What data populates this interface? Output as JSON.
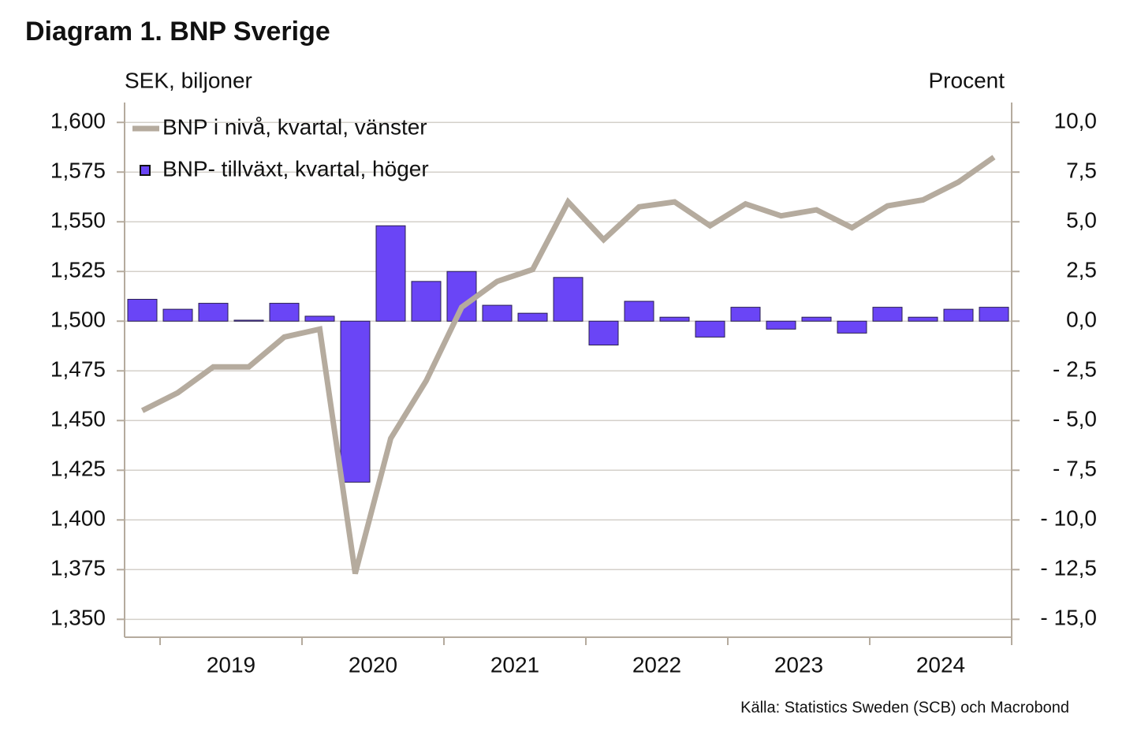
{
  "chart_data": {
    "type": "bar-line",
    "title": "Diagram 1. BNP Sverige",
    "y_axis_label": "SEK, biljoner",
    "y2_axis_label": "Procent",
    "source": "Källa: Statistics Sweden (SCB)  och Macrobond",
    "year_labels": [
      "2019",
      "2020",
      "2021",
      "2022",
      "2023",
      "2024"
    ],
    "ylim": [
      1341,
      1610
    ],
    "yticks": [
      {
        "value": 1350,
        "label": "1,350"
      },
      {
        "value": 1375,
        "label": "1,375"
      },
      {
        "value": 1400,
        "label": "1,400"
      },
      {
        "value": 1425,
        "label": "1,425"
      },
      {
        "value": 1450,
        "label": "1,450"
      },
      {
        "value": 1475,
        "label": "1,475"
      },
      {
        "value": 1500,
        "label": "1,500"
      },
      {
        "value": 1525,
        "label": "1,525"
      },
      {
        "value": 1550,
        "label": "1,550"
      },
      {
        "value": 1575,
        "label": "1,575"
      },
      {
        "value": 1600,
        "label": "1,600"
      }
    ],
    "y2lim": [
      -15.9,
      11.0
    ],
    "y2ticks": [
      {
        "value": -15,
        "label": "- 15,0"
      },
      {
        "value": -12.5,
        "label": "- 12,5"
      },
      {
        "value": -10,
        "label": "- 10,0"
      },
      {
        "value": -7.5,
        "label": "- 7,5"
      },
      {
        "value": -5,
        "label": "- 5,0"
      },
      {
        "value": -2.5,
        "label": "- 2,5"
      },
      {
        "value": 0,
        "label": "0,0"
      },
      {
        "value": 2.5,
        "label": "2,5"
      },
      {
        "value": 5,
        "label": "5,0"
      },
      {
        "value": 7.5,
        "label": "7,5"
      },
      {
        "value": 10,
        "label": "10,0"
      }
    ],
    "grid": true,
    "legend": "top-left",
    "series": [
      {
        "name": "BNP i nivå, kvartal, vänster",
        "type": "line",
        "color": "#b5ab9e",
        "values": [
          1455,
          1464,
          1477,
          1477,
          1492,
          1496,
          1373,
          1441,
          1470,
          1507,
          1520,
          1526,
          1560,
          1541,
          1557.5,
          1560,
          1548,
          1559,
          1553,
          1556,
          1547,
          1558,
          1561,
          1570,
          1582.5
        ]
      },
      {
        "name": "BNP- tillväxt, kvartal, höger",
        "type": "bar",
        "axis": "y2",
        "color": "#6a45f6",
        "values": [
          1.1,
          0.6,
          0.9,
          0.05,
          0.9,
          0.25,
          -8.1,
          4.8,
          2.0,
          2.5,
          0.8,
          0.4,
          2.2,
          -1.2,
          1.0,
          0.2,
          -0.8,
          0.7,
          -0.4,
          0.2,
          -0.6,
          0.7,
          0.2,
          0.6,
          0.7
        ]
      }
    ]
  }
}
